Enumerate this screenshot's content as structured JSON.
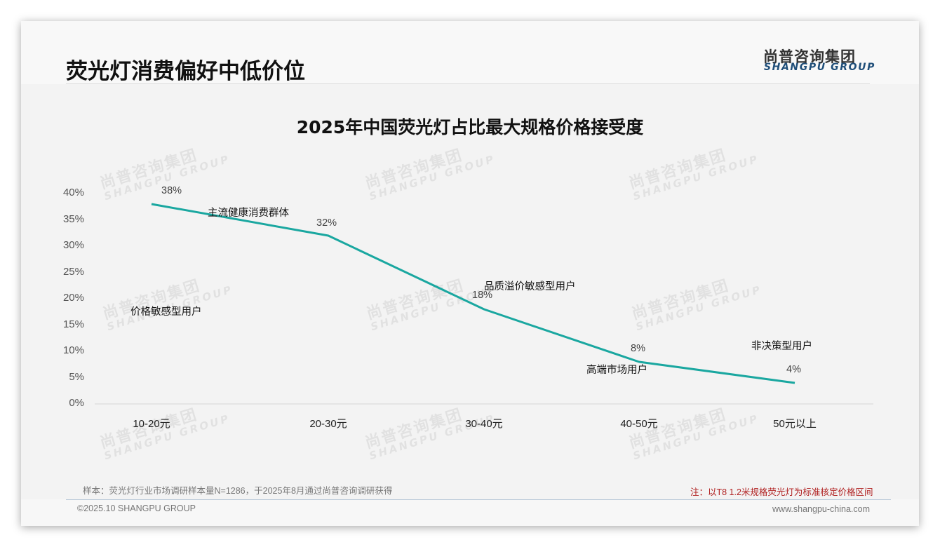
{
  "header": {
    "title": "荧光灯消费偏好中低价位",
    "logo_cn": "尚普咨询集团",
    "logo_en": "SHANGPU GROUP"
  },
  "watermark": {
    "cn": "尚普咨询集团",
    "en": "SHANGPU GROUP"
  },
  "chart_data": {
    "type": "line",
    "title": "2025年中国荧光灯占比最大规格价格接受度",
    "xlabel": "",
    "ylabel": "",
    "categories": [
      "10-20元",
      "20-30元",
      "30-40元",
      "40-50元",
      "50元以上"
    ],
    "values": [
      38,
      32,
      18,
      8,
      4
    ],
    "value_labels": [
      "38%",
      "32%",
      "18%",
      "8%",
      "4%"
    ],
    "ylim": [
      0,
      40
    ],
    "yticks": [
      "0%",
      "5%",
      "10%",
      "15%",
      "20%",
      "25%",
      "30%",
      "35%",
      "40%"
    ],
    "grid": false,
    "legend": "none",
    "line_color": "#1aa7a0",
    "annotations": [
      {
        "text": "价格敏感型用户",
        "category": "10-20元"
      },
      {
        "text": "主流健康消费群体",
        "category": "20-30元"
      },
      {
        "text": "品质溢价敏感型用户",
        "category": "30-40元"
      },
      {
        "text": "高端市场用户",
        "category": "40-50元"
      },
      {
        "text": "非决策型用户",
        "category": "50元以上"
      }
    ]
  },
  "notes": {
    "sample": "样本：荧光灯行业市场调研样本量N=1286，于2025年8月通过尚普咨询调研获得",
    "remark": "注：以T8 1.2米规格荧光灯为标准核定价格区间"
  },
  "footer": {
    "copyright": "©2025.10 SHANGPU GROUP",
    "website": "www.shangpu-china.com"
  }
}
